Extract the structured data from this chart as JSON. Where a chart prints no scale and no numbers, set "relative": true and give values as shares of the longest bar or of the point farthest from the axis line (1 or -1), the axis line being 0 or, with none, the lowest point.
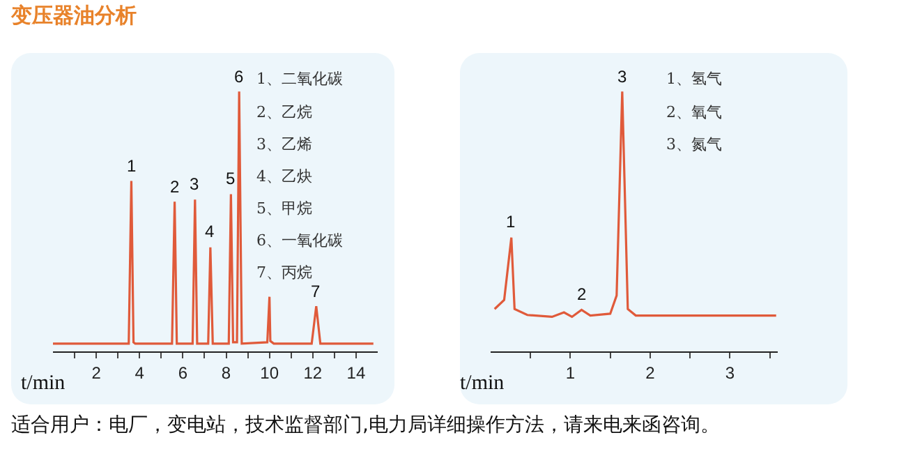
{
  "chart_data": [
    {
      "type": "line",
      "title": "变压器油分析",
      "relative": true,
      "xlabel": "t/min",
      "xlim": [
        0,
        15
      ],
      "xticks": [
        {
          "value": 1,
          "label": null
        },
        2,
        {
          "value": 3,
          "label": null
        },
        4,
        {
          "value": 5,
          "label": null
        },
        6,
        {
          "value": 7,
          "label": null
        },
        8,
        {
          "value": 9,
          "label": null
        },
        10,
        {
          "value": 11,
          "label": null
        },
        12,
        {
          "value": 13,
          "label": null
        },
        14
      ],
      "series": [
        {
          "color": "#e05a3a",
          "x": [
            0,
            3.5,
            3.62,
            3.72,
            3.8,
            5.5,
            5.62,
            5.72,
            6.45,
            6.56,
            6.66,
            7.17,
            7.27,
            7.38,
            8.12,
            8.22,
            8.32,
            8.5,
            8.6,
            8.72,
            9.9,
            10.0,
            10.04,
            10.2,
            11.95,
            12.16,
            12.35,
            14.8
          ],
          "values": [
            0.03,
            0.03,
            0.656,
            0.035,
            0.03,
            0.03,
            0.576,
            0.03,
            0.03,
            0.584,
            0.03,
            0.03,
            0.4,
            0.03,
            0.03,
            0.605,
            0.035,
            0.035,
            1,
            0.03,
            0.035,
            0.21,
            0.04,
            0.03,
            0.03,
            0.174,
            0.03,
            0.03
          ]
        }
      ],
      "annotations": [
        {
          "text": "1",
          "x": 3.62,
          "y": 0.656
        },
        {
          "text": "2",
          "x": 5.62,
          "y": 0.576
        },
        {
          "text": "3",
          "x": 6.56,
          "y": 0.584
        },
        {
          "text": "4",
          "x": 7.27,
          "y": 0.4
        },
        {
          "text": "5",
          "x": 8.22,
          "y": 0.605
        },
        {
          "text": "6",
          "x": 8.6,
          "y": 1
        },
        {
          "text": "7",
          "x": 12.16,
          "y": 0.174
        },
        "1、二氧化碳",
        "2、乙烷",
        "3、乙烯",
        "4、乙炔",
        "5、甲烷",
        "6、一氧化碳",
        "7、丙烷"
      ],
      "grid": false
    },
    {
      "type": "line",
      "relative": true,
      "xlabel": "t/min",
      "xlim": [
        0,
        3.6
      ],
      "xticks": [
        {
          "value": 0.5,
          "label": null
        },
        1,
        {
          "value": 1.5,
          "label": null
        },
        2,
        {
          "value": 2.5,
          "label": null
        },
        3,
        {
          "value": 3.5,
          "label": null
        }
      ],
      "series": [
        {
          "color": "#e05a3a",
          "x": [
            0.05,
            0.17,
            0.26,
            0.3,
            0.46,
            0.77,
            0.92,
            1.02,
            1.14,
            1.25,
            1.5,
            1.58,
            1.65,
            1.72,
            1.82,
            3.58
          ],
          "values": [
            0.163,
            0.198,
            0.438,
            0.163,
            0.14,
            0.133,
            0.15,
            0.133,
            0.16,
            0.138,
            0.145,
            0.215,
            1,
            0.163,
            0.138,
            0.138
          ]
        }
      ],
      "annotations": [
        {
          "text": "1",
          "x": 0.26,
          "y": 0.438
        },
        {
          "text": "2",
          "x": 1.14,
          "y": 0.16
        },
        {
          "text": "3",
          "x": 1.65,
          "y": 1
        },
        "1、氢气",
        "2、氧气",
        "3、氮气",
        "适合用户：电厂，变电站，技术监督部门,电力局详细操作方法，请来电来函咨询。"
      ],
      "grid": false
    }
  ]
}
